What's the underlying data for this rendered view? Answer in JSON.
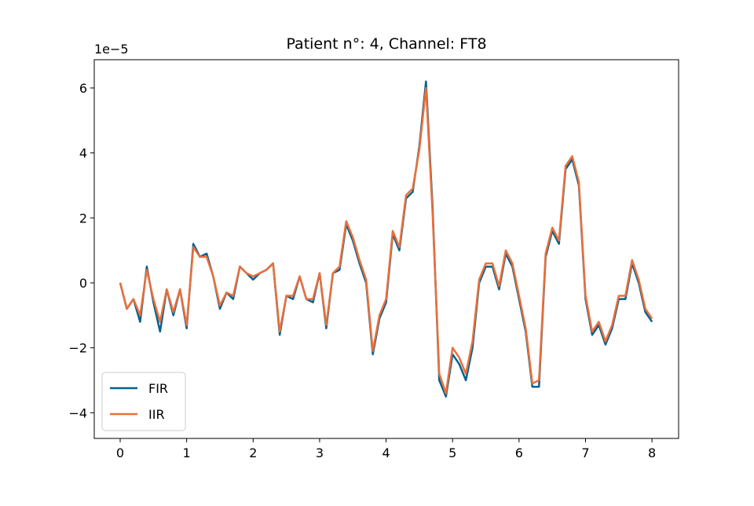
{
  "chart_data": {
    "type": "line",
    "title": "Patient n°: 4, Channel: FT8",
    "y_offset_label": "1e−5",
    "x": [
      0,
      0.1,
      0.2,
      0.3,
      0.4,
      0.5,
      0.6,
      0.7,
      0.8,
      0.9,
      1,
      1.1,
      1.2,
      1.3,
      1.4,
      1.5,
      1.6,
      1.7,
      1.8,
      1.9,
      2,
      2.1,
      2.2,
      2.3,
      2.4,
      2.5,
      2.6,
      2.7,
      2.8,
      2.9,
      3,
      3.1,
      3.2,
      3.3,
      3.4,
      3.5,
      3.6,
      3.7,
      3.8,
      3.9,
      4,
      4.1,
      4.2,
      4.3,
      4.4,
      4.5,
      4.6,
      4.7,
      4.8,
      4.9,
      5,
      5.1,
      5.2,
      5.3,
      5.4,
      5.5,
      5.6,
      5.7,
      5.8,
      5.9,
      6,
      6.1,
      6.2,
      6.3,
      6.4,
      6.5,
      6.6,
      6.7,
      6.8,
      6.9,
      7,
      7.1,
      7.2,
      7.3,
      7.4,
      7.5,
      7.6,
      7.7,
      7.8,
      7.9,
      8
    ],
    "series": [
      {
        "name": "FIR",
        "color": "#00628f",
        "values": [
          0,
          -0.8,
          -0.5,
          -1.2,
          0.5,
          -0.6,
          -1.5,
          -0.2,
          -1.0,
          -0.2,
          -1.4,
          1.2,
          0.8,
          0.9,
          0.2,
          -0.8,
          -0.3,
          -0.5,
          0.5,
          0.3,
          0.1,
          0.3,
          0.4,
          0.6,
          -1.6,
          -0.4,
          -0.5,
          0.2,
          -0.5,
          -0.6,
          0.3,
          -1.4,
          0.3,
          0.4,
          1.8,
          1.3,
          0.6,
          0.0,
          -2.2,
          -1.1,
          -0.6,
          1.5,
          1.0,
          2.6,
          2.8,
          4.2,
          6.2,
          2.3,
          -3.0,
          -3.5,
          -2.2,
          -2.5,
          -3.0,
          -2.0,
          0.0,
          0.5,
          0.5,
          -0.2,
          0.9,
          0.5,
          -0.5,
          -1.5,
          -3.2,
          -3.2,
          0.8,
          1.6,
          1.2,
          3.5,
          3.8,
          3.0,
          -0.5,
          -1.6,
          -1.3,
          -1.9,
          -1.4,
          -0.5,
          -0.5,
          0.6,
          0.0,
          -0.9,
          -1.2
        ]
      },
      {
        "name": "IIR",
        "color": "#ea6f3a",
        "values": [
          0,
          -0.8,
          -0.5,
          -1.0,
          0.4,
          -0.5,
          -1.2,
          -0.2,
          -0.9,
          -0.2,
          -1.3,
          1.1,
          0.8,
          0.8,
          0.2,
          -0.7,
          -0.3,
          -0.4,
          0.5,
          0.3,
          0.2,
          0.3,
          0.4,
          0.6,
          -1.5,
          -0.4,
          -0.4,
          0.2,
          -0.5,
          -0.5,
          0.3,
          -1.3,
          0.3,
          0.5,
          1.9,
          1.4,
          0.7,
          0.1,
          -2.1,
          -1.0,
          -0.5,
          1.6,
          1.1,
          2.7,
          2.9,
          4.1,
          6.0,
          2.1,
          -2.8,
          -3.4,
          -2.0,
          -2.3,
          -2.8,
          -1.8,
          0.1,
          0.6,
          0.6,
          -0.1,
          1.0,
          0.6,
          -0.4,
          -1.4,
          -3.1,
          -3.0,
          0.9,
          1.7,
          1.3,
          3.6,
          3.9,
          3.1,
          -0.4,
          -1.5,
          -1.2,
          -1.8,
          -1.3,
          -0.4,
          -0.4,
          0.7,
          0.1,
          -0.8,
          -1.1
        ]
      }
    ],
    "xlim": [
      -0.39,
      8.4
    ],
    "ylim": [
      -4.79,
      6.87
    ],
    "xticks": [
      0,
      1,
      2,
      3,
      4,
      5,
      6,
      7,
      8
    ],
    "yticks": [
      {
        "value": -4,
        "label": "−4"
      },
      {
        "value": -2,
        "label": "−2"
      },
      0,
      2,
      4,
      6
    ],
    "legend": "lower left",
    "grid": false
  }
}
